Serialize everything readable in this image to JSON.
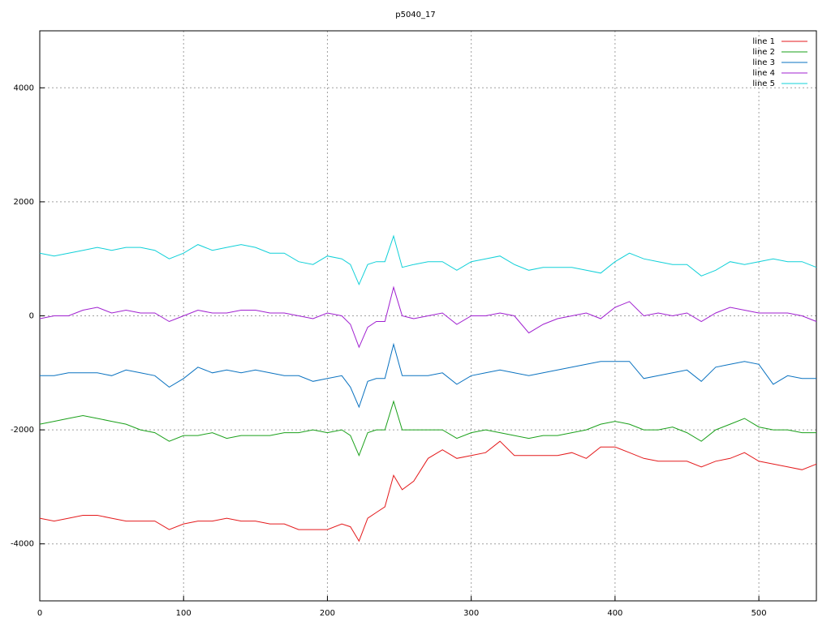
{
  "chart_data": {
    "type": "line",
    "title": "p5040_17",
    "x": [
      0,
      10,
      20,
      30,
      40,
      50,
      60,
      70,
      80,
      90,
      100,
      110,
      120,
      130,
      140,
      150,
      160,
      170,
      180,
      190,
      200,
      210,
      216,
      222,
      228,
      234,
      240,
      246,
      252,
      260,
      270,
      280,
      290,
      300,
      310,
      320,
      330,
      340,
      350,
      360,
      370,
      380,
      390,
      400,
      410,
      420,
      430,
      440,
      450,
      460,
      470,
      480,
      490,
      500,
      510,
      520,
      530,
      540
    ],
    "series": [
      {
        "name": "line 1",
        "color": "#e41a1c",
        "values": [
          -3550,
          -3600,
          -3550,
          -3500,
          -3500,
          -3550,
          -3600,
          -3600,
          -3600,
          -3750,
          -3650,
          -3600,
          -3600,
          -3550,
          -3600,
          -3600,
          -3650,
          -3650,
          -3750,
          -3750,
          -3750,
          -3650,
          -3700,
          -3950,
          -3550,
          -3450,
          -3350,
          -2800,
          -3050,
          -2900,
          -2500,
          -2350,
          -2500,
          -2450,
          -2400,
          -2200,
          -2450,
          -2450,
          -2450,
          -2450,
          -2400,
          -2500,
          -2300,
          -2300,
          -2400,
          -2500,
          -2550,
          -2550,
          -2550,
          -2650,
          -2550,
          -2500,
          -2400,
          -2550,
          -2600,
          -2650,
          -2700,
          -2600
        ]
      },
      {
        "name": "line 2",
        "color": "#1aa01a",
        "values": [
          -1900,
          -1850,
          -1800,
          -1750,
          -1800,
          -1850,
          -1900,
          -2000,
          -2050,
          -2200,
          -2100,
          -2100,
          -2050,
          -2150,
          -2100,
          -2100,
          -2100,
          -2050,
          -2050,
          -2000,
          -2050,
          -2000,
          -2100,
          -2450,
          -2050,
          -2000,
          -2000,
          -1500,
          -2000,
          -2000,
          -2000,
          -2000,
          -2150,
          -2050,
          -2000,
          -2050,
          -2100,
          -2150,
          -2100,
          -2100,
          -2050,
          -2000,
          -1900,
          -1850,
          -1900,
          -2000,
          -2000,
          -1950,
          -2050,
          -2200,
          -2000,
          -1900,
          -1800,
          -1950,
          -2000,
          -2000,
          -2050,
          -2050
        ]
      },
      {
        "name": "line 3",
        "color": "#0a72c0",
        "values": [
          -1050,
          -1050,
          -1000,
          -1000,
          -1000,
          -1050,
          -950,
          -1000,
          -1050,
          -1250,
          -1100,
          -900,
          -1000,
          -950,
          -1000,
          -950,
          -1000,
          -1050,
          -1050,
          -1150,
          -1100,
          -1050,
          -1250,
          -1600,
          -1150,
          -1100,
          -1100,
          -500,
          -1050,
          -1050,
          -1050,
          -1000,
          -1200,
          -1050,
          -1000,
          -950,
          -1000,
          -1050,
          -1000,
          -950,
          -900,
          -850,
          -800,
          -800,
          -800,
          -1100,
          -1050,
          -1000,
          -950,
          -1150,
          -900,
          -850,
          -800,
          -850,
          -1200,
          -1050,
          -1100,
          -1100
        ]
      },
      {
        "name": "line 4",
        "color": "#a020d0",
        "values": [
          -50,
          0,
          0,
          100,
          150,
          50,
          100,
          50,
          50,
          -100,
          0,
          100,
          50,
          50,
          100,
          100,
          50,
          50,
          0,
          -50,
          50,
          0,
          -150,
          -550,
          -200,
          -100,
          -100,
          500,
          0,
          -50,
          0,
          50,
          -150,
          0,
          0,
          50,
          0,
          -300,
          -150,
          -50,
          0,
          50,
          -50,
          150,
          250,
          0,
          50,
          0,
          50,
          -100,
          50,
          150,
          100,
          50,
          50,
          50,
          0,
          -100
        ]
      },
      {
        "name": "line 5",
        "color": "#10d0d8",
        "values": [
          1100,
          1050,
          1100,
          1150,
          1200,
          1150,
          1200,
          1200,
          1150,
          1000,
          1100,
          1250,
          1150,
          1200,
          1250,
          1200,
          1100,
          1100,
          950,
          900,
          1050,
          1000,
          900,
          550,
          900,
          950,
          950,
          1400,
          850,
          900,
          950,
          950,
          800,
          950,
          1000,
          1050,
          900,
          800,
          850,
          850,
          850,
          800,
          750,
          950,
          1100,
          1000,
          950,
          900,
          900,
          700,
          800,
          950,
          900,
          950,
          1000,
          950,
          950,
          850
        ]
      }
    ],
    "xlim": [
      0,
      540
    ],
    "ylim": [
      -5000,
      5000
    ],
    "xticks": [
      0,
      100,
      200,
      300,
      400,
      500
    ],
    "yticks": [
      -4000,
      -2000,
      0,
      2000,
      4000
    ],
    "grid": true,
    "legend": "top right"
  }
}
